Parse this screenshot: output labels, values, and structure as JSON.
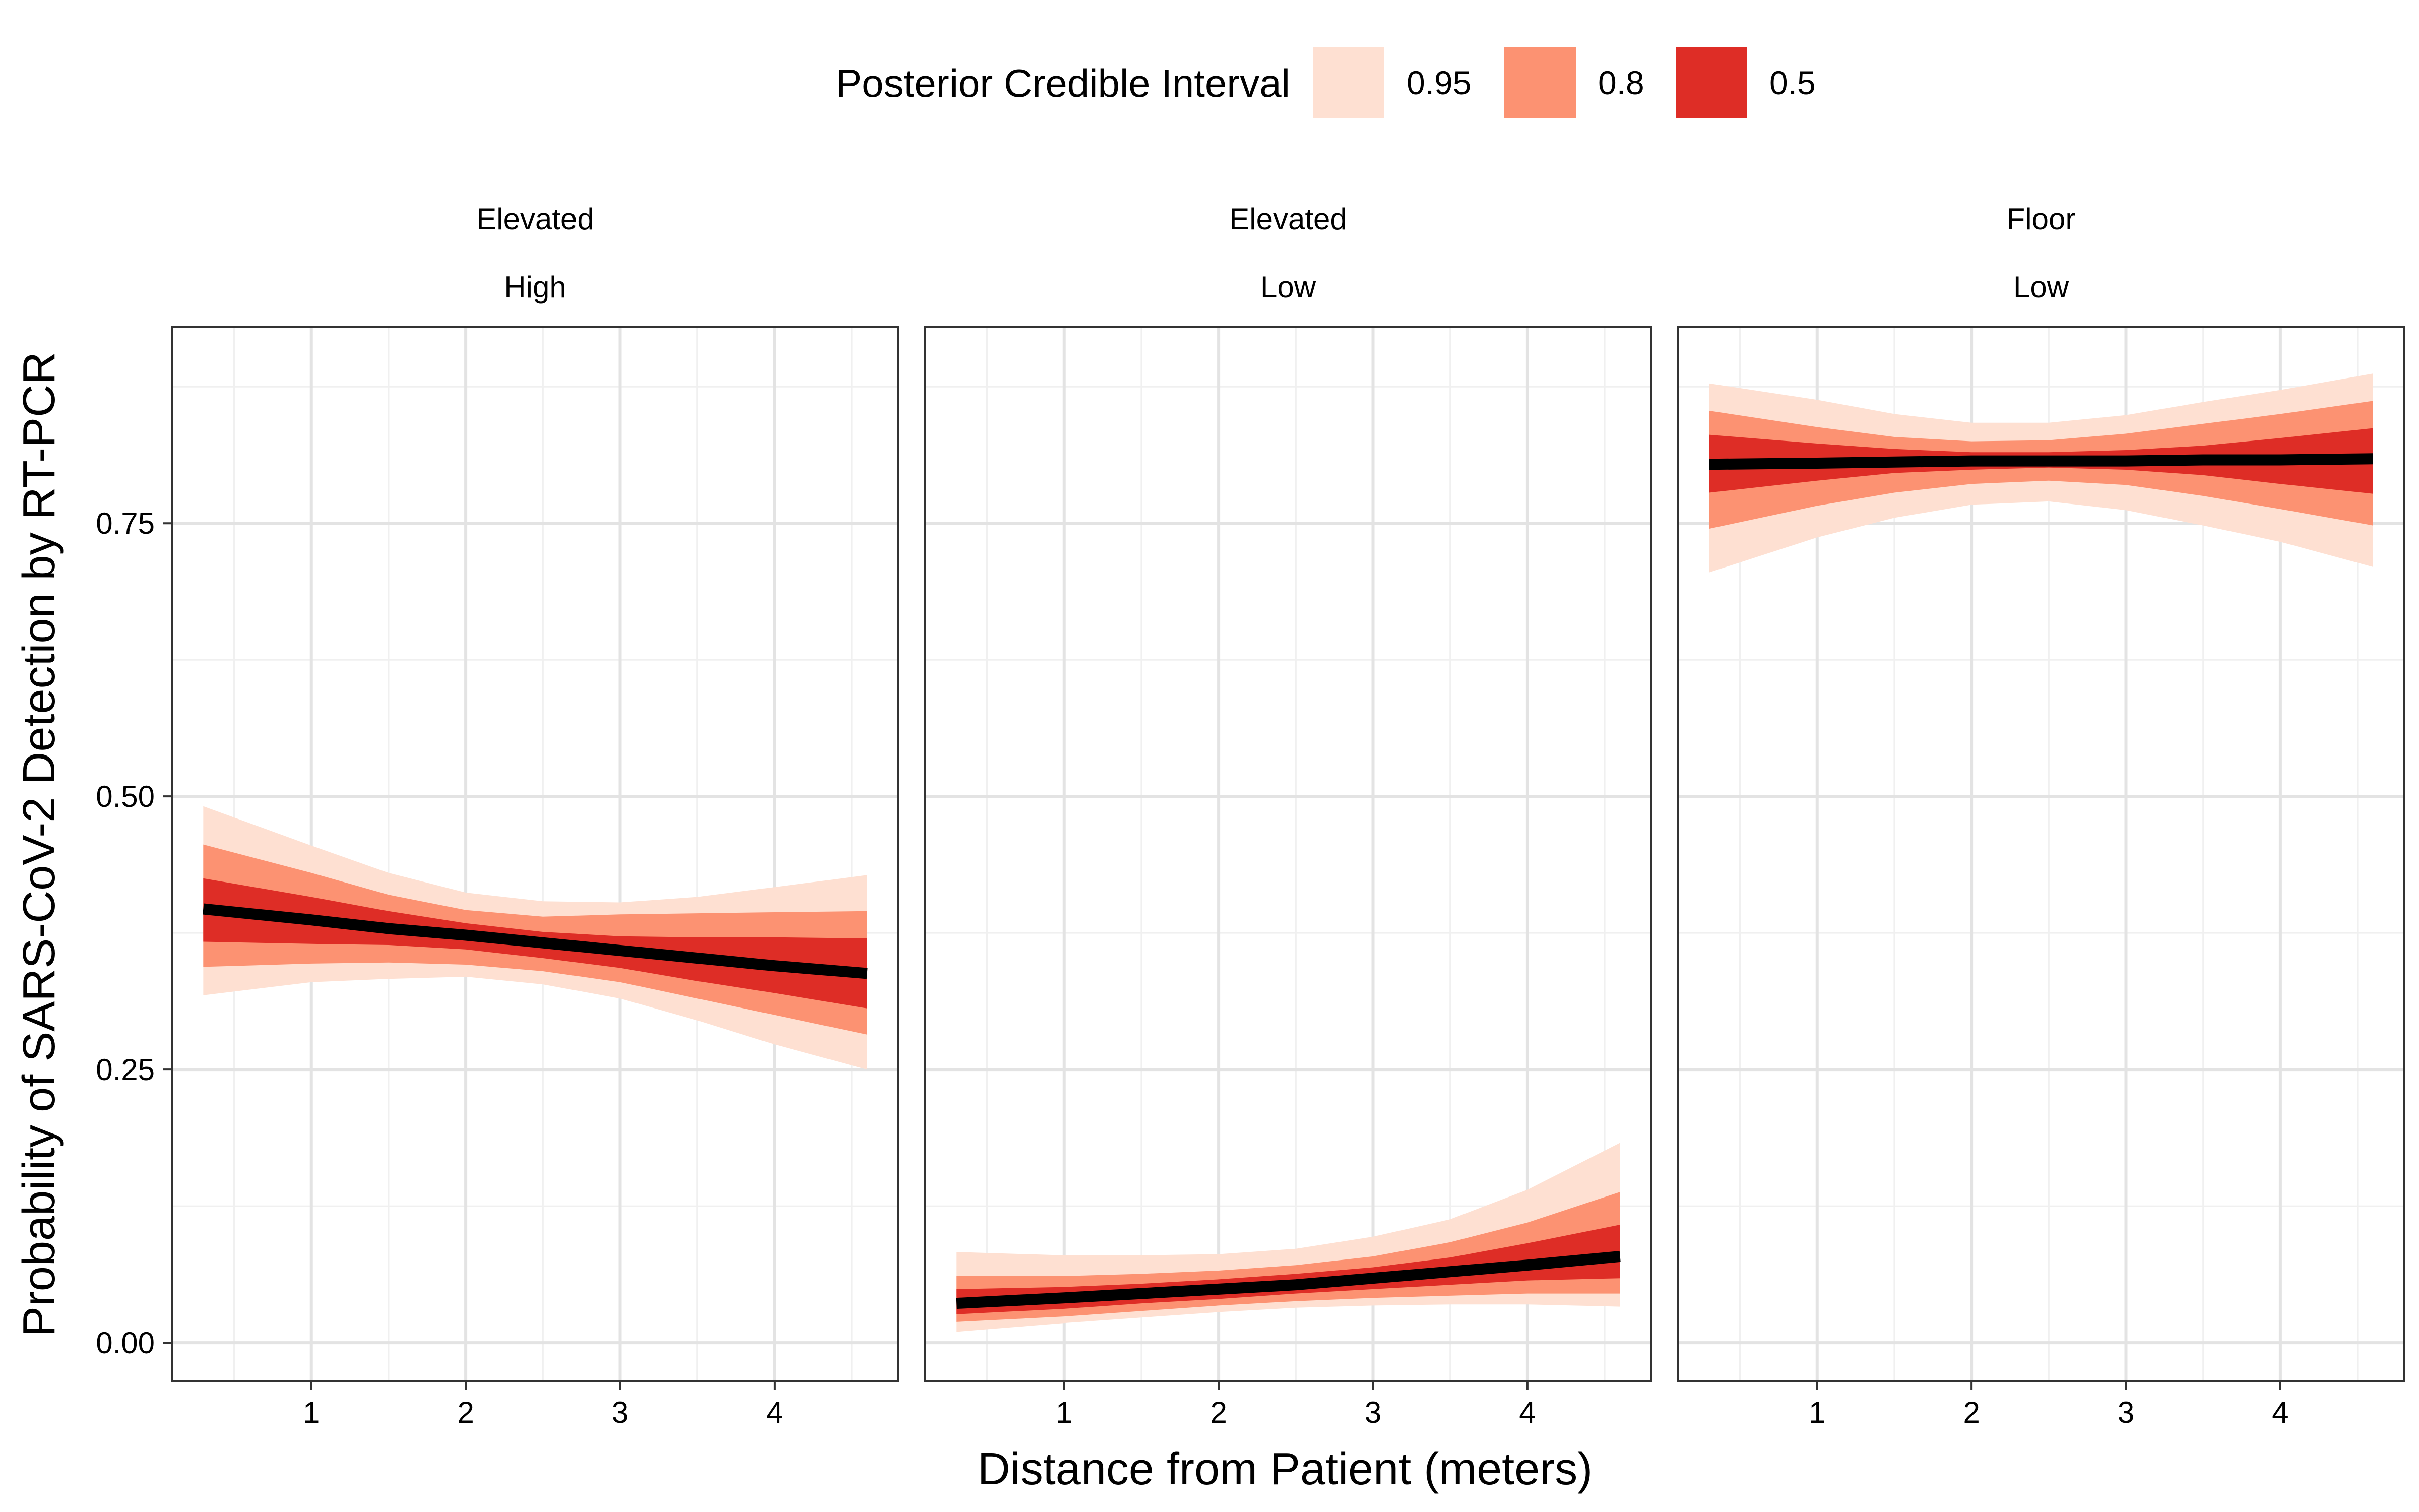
{
  "chart_data": {
    "type": "area",
    "xlabel": "Distance from Patient (meters)",
    "ylabel": "Probability of SARS-CoV-2 Detection by RT-PCR",
    "xlim": [
      0.1,
      4.8
    ],
    "ylim": [
      -0.035,
      0.93
    ],
    "x_ticks": [
      1,
      2,
      3,
      4
    ],
    "x_tick_labels": [
      "1",
      "2",
      "3",
      "4"
    ],
    "x_minor_ticks": [
      0.5,
      1.5,
      2.5,
      3.5,
      4.5
    ],
    "y_ticks": [
      0,
      0.25,
      0.5,
      0.75
    ],
    "y_tick_labels": [
      "0.00",
      "0.25",
      "0.50",
      "0.75"
    ],
    "y_minor_ticks": [
      0.125,
      0.375,
      0.625,
      0.875
    ],
    "grid": true,
    "legend": {
      "title": "Posterior Credible Interval",
      "position": "top",
      "entries": [
        {
          "label": "0.95",
          "color": "#FEE0D2"
        },
        {
          "label": "0.8",
          "color": "#FC9272"
        },
        {
          "label": "0.5",
          "color": "#DE2D26"
        }
      ]
    },
    "median_color": "#000000",
    "panels": [
      {
        "strip": [
          "Elevated",
          "High"
        ],
        "x": [
          0.3,
          1.0,
          1.5,
          2.0,
          2.5,
          3.0,
          3.5,
          4.0,
          4.6
        ],
        "median": [
          0.397,
          0.387,
          0.379,
          0.373,
          0.366,
          0.359,
          0.352,
          0.345,
          0.338
        ],
        "bands": [
          {
            "level": "0.95",
            "lower": [
              0.318,
              0.33,
              0.333,
              0.335,
              0.328,
              0.315,
              0.295,
              0.273,
              0.25
            ],
            "upper": [
              0.491,
              0.455,
              0.43,
              0.412,
              0.404,
              0.403,
              0.408,
              0.417,
              0.428
            ]
          },
          {
            "level": "0.8",
            "lower": [
              0.344,
              0.347,
              0.348,
              0.346,
              0.34,
              0.33,
              0.315,
              0.3,
              0.282
            ],
            "upper": [
              0.456,
              0.43,
              0.41,
              0.396,
              0.39,
              0.392,
              0.393,
              0.394,
              0.395
            ]
          },
          {
            "level": "0.5",
            "lower": [
              0.367,
              0.365,
              0.364,
              0.36,
              0.352,
              0.343,
              0.331,
              0.32,
              0.306
            ],
            "upper": [
              0.425,
              0.408,
              0.395,
              0.384,
              0.376,
              0.372,
              0.371,
              0.371,
              0.37
            ]
          }
        ]
      },
      {
        "strip": [
          "Elevated",
          "Low"
        ],
        "x": [
          0.3,
          1.0,
          1.5,
          2.0,
          2.5,
          3.0,
          3.5,
          4.0,
          4.6
        ],
        "median": [
          0.036,
          0.041,
          0.045,
          0.049,
          0.053,
          0.059,
          0.065,
          0.071,
          0.079
        ],
        "bands": [
          {
            "level": "0.95",
            "lower": [
              0.01,
              0.018,
              0.023,
              0.028,
              0.032,
              0.034,
              0.035,
              0.035,
              0.033
            ],
            "upper": [
              0.083,
              0.08,
              0.08,
              0.081,
              0.086,
              0.097,
              0.113,
              0.14,
              0.183
            ]
          },
          {
            "level": "0.8",
            "lower": [
              0.019,
              0.024,
              0.029,
              0.034,
              0.038,
              0.041,
              0.043,
              0.045,
              0.045
            ],
            "upper": [
              0.061,
              0.061,
              0.063,
              0.066,
              0.071,
              0.079,
              0.092,
              0.11,
              0.138
            ]
          },
          {
            "level": "0.5",
            "lower": [
              0.026,
              0.031,
              0.036,
              0.04,
              0.045,
              0.049,
              0.053,
              0.057,
              0.059
            ],
            "upper": [
              0.049,
              0.051,
              0.054,
              0.058,
              0.063,
              0.069,
              0.078,
              0.091,
              0.108
            ]
          }
        ]
      },
      {
        "strip": [
          "Floor",
          "Low"
        ],
        "x": [
          0.3,
          1.0,
          1.5,
          2.0,
          2.5,
          3.0,
          3.5,
          4.0,
          4.6
        ],
        "median": [
          0.804,
          0.805,
          0.806,
          0.807,
          0.807,
          0.807,
          0.808,
          0.808,
          0.809
        ],
        "bands": [
          {
            "level": "0.95",
            "lower": [
              0.705,
              0.737,
              0.755,
              0.767,
              0.77,
              0.762,
              0.748,
              0.733,
              0.71
            ],
            "upper": [
              0.878,
              0.863,
              0.85,
              0.842,
              0.842,
              0.849,
              0.861,
              0.872,
              0.887
            ]
          },
          {
            "level": "0.8",
            "lower": [
              0.745,
              0.766,
              0.778,
              0.786,
              0.789,
              0.785,
              0.775,
              0.763,
              0.748
            ],
            "upper": [
              0.853,
              0.838,
              0.829,
              0.825,
              0.826,
              0.832,
              0.841,
              0.85,
              0.862
            ]
          },
          {
            "level": "0.5",
            "lower": [
              0.778,
              0.789,
              0.796,
              0.799,
              0.801,
              0.799,
              0.794,
              0.786,
              0.777
            ],
            "upper": [
              0.831,
              0.823,
              0.818,
              0.815,
              0.815,
              0.817,
              0.821,
              0.828,
              0.837
            ]
          }
        ]
      }
    ]
  }
}
